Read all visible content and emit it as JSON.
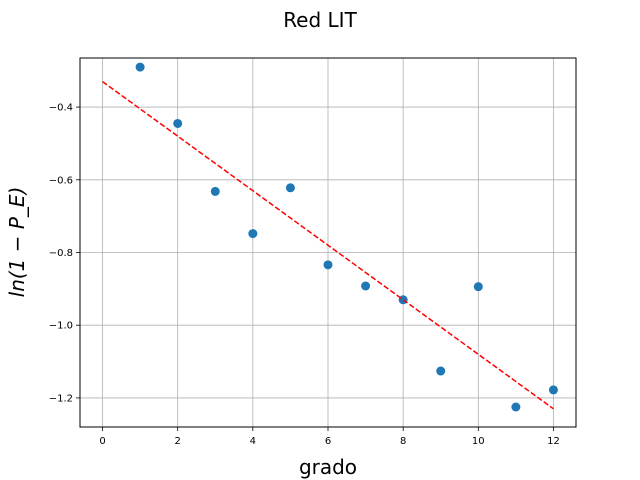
{
  "chart_data": {
    "type": "scatter",
    "title": "Red LIT",
    "xlabel": "grado",
    "ylabel": "ln(1 − P_E)",
    "xlim": [
      -0.6,
      12.6
    ],
    "ylim": [
      -1.28,
      -0.265
    ],
    "xticks": [
      0,
      2,
      4,
      6,
      8,
      10,
      12
    ],
    "xtick_labels": [
      "0",
      "2",
      "4",
      "6",
      "8",
      "10",
      "12"
    ],
    "yticks": [
      -1.2,
      -1.0,
      -0.8,
      -0.6,
      -0.4
    ],
    "ytick_labels": [
      "−1.2",
      "−1.0",
      "−0.8",
      "−0.6",
      "−0.4"
    ],
    "grid": true,
    "series": [
      {
        "kind": "scatter",
        "color": "#1f77b4",
        "x": [
          1,
          2,
          3,
          4,
          5,
          6,
          7,
          8,
          9,
          10,
          11,
          12
        ],
        "y": [
          -0.29,
          -0.445,
          -0.632,
          -0.748,
          -0.622,
          -0.834,
          -0.892,
          -0.93,
          -1.126,
          -0.894,
          -1.225,
          -1.178
        ]
      },
      {
        "kind": "line",
        "style": "dashed",
        "color": "#ff0000",
        "x": [
          0,
          12
        ],
        "y": [
          -0.33,
          -1.23
        ]
      }
    ]
  }
}
